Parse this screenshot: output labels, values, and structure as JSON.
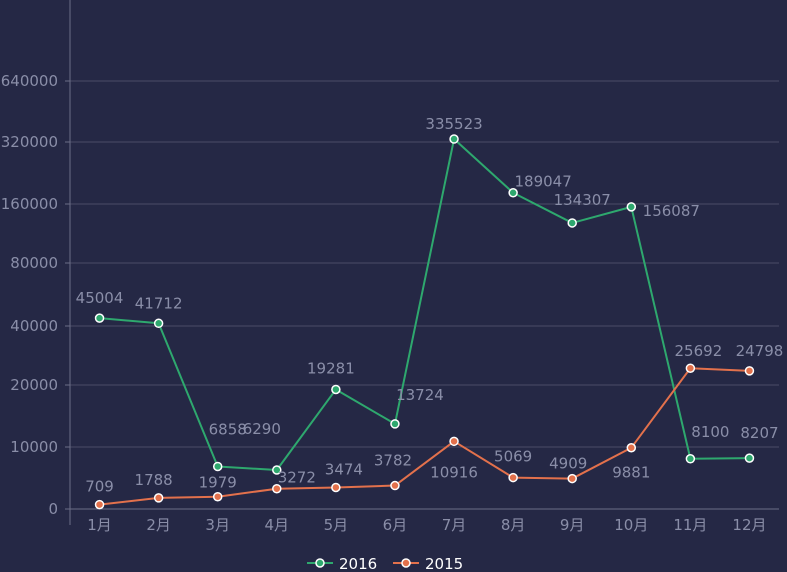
{
  "chart_data": {
    "type": "line",
    "categories": [
      "1月",
      "2月",
      "3月",
      "4月",
      "5月",
      "6月",
      "7月",
      "8月",
      "9月",
      "10月",
      "11月",
      "12月"
    ],
    "y_ticks": [
      0,
      10000,
      20000,
      40000,
      80000,
      160000,
      320000,
      640000
    ],
    "y_tick_labels": [
      "0",
      "10000",
      "20000",
      "40000",
      "80000",
      "160000",
      "320000",
      "640000"
    ],
    "grid": true,
    "legend_position": "bottom-center",
    "series": [
      {
        "name": "2016",
        "color": "#2ea86e",
        "values": [
          45004,
          41712,
          6858,
          6290,
          19281,
          13724,
          335523,
          189047,
          134307,
          156087,
          8100,
          8207
        ],
        "labels": [
          "45004",
          "41712",
          "6858",
          "6290",
          "19281",
          "13724",
          "335523",
          "189047",
          "134307",
          "156087",
          "8100",
          "8207"
        ]
      },
      {
        "name": "2015",
        "color": "#e3714c",
        "values": [
          709,
          1788,
          1979,
          3272,
          3474,
          3782,
          10916,
          5069,
          4909,
          9881,
          25692,
          24798
        ],
        "labels": [
          "709",
          "1788",
          "1979",
          "3272",
          "3474",
          "3782",
          "10916",
          "5069",
          "4909",
          "9881",
          "25692",
          "24798"
        ]
      }
    ]
  }
}
